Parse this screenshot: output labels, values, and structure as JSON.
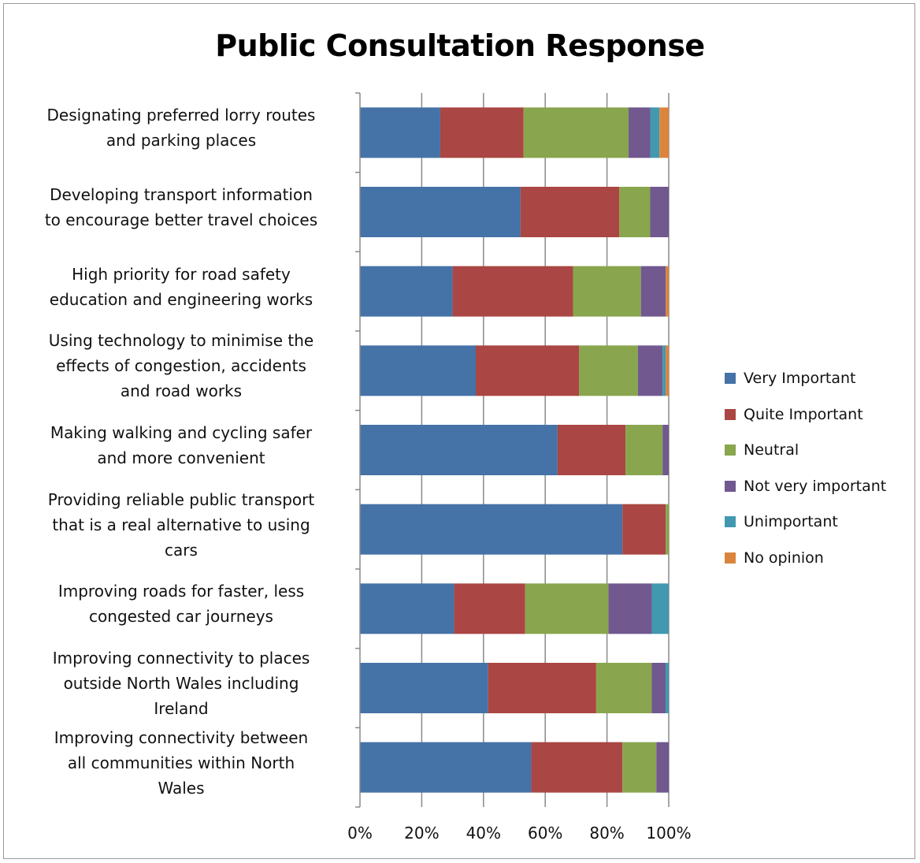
{
  "chart_data": {
    "type": "bar",
    "orientation": "horizontal",
    "stacked": "percent",
    "title": "Public Consultation Response",
    "categories": [
      [
        "Designating preferred  lorry routes",
        "and parking places"
      ],
      [
        "Developing transport information",
        "to encourage better travel choices"
      ],
      [
        "High priority for road safety",
        "education and engineering works"
      ],
      [
        "Using technology to minimise the",
        "effects of congestion, accidents",
        "and road works"
      ],
      [
        "Making walking and cycling safer",
        "and more convenient"
      ],
      [
        "Providing reliable public transport",
        "that is a real alternative to using",
        "cars"
      ],
      [
        "Improving roads for faster, less",
        "congested car journeys"
      ],
      [
        "Improving connectivity to places",
        "outside North Wales including",
        "Ireland"
      ],
      [
        "Improving connectivity between",
        "all communities within North",
        "Wales"
      ]
    ],
    "series": [
      {
        "name": "Very Important",
        "color": "#4572A7",
        "values": [
          26,
          52,
          30,
          37.5,
          64,
          85,
          30.5,
          41.5,
          55.5
        ]
      },
      {
        "name": "Quite Important",
        "color": "#AA4643",
        "values": [
          27,
          32,
          39,
          33.5,
          22,
          14,
          23,
          35,
          29.5
        ]
      },
      {
        "name": "Neutral",
        "color": "#89A54E",
        "values": [
          34,
          10,
          22,
          19,
          12,
          1,
          27,
          18,
          11
        ]
      },
      {
        "name": "Not very important",
        "color": "#71588F",
        "values": [
          7,
          6,
          8,
          8,
          2,
          0,
          14,
          4.5,
          4
        ]
      },
      {
        "name": "Unimportant",
        "color": "#4198AF",
        "values": [
          3,
          0,
          0,
          1,
          0,
          0,
          5.5,
          1,
          0
        ]
      },
      {
        "name": "No opinion",
        "color": "#DB843D",
        "values": [
          3,
          0,
          1,
          1,
          0,
          0,
          0,
          0,
          0
        ]
      }
    ],
    "xlim": [
      0,
      100
    ],
    "xticks": [
      "0%",
      "20%",
      "40%",
      "60%",
      "80%",
      "100%"
    ],
    "grid": "vertical",
    "legend": "right"
  }
}
